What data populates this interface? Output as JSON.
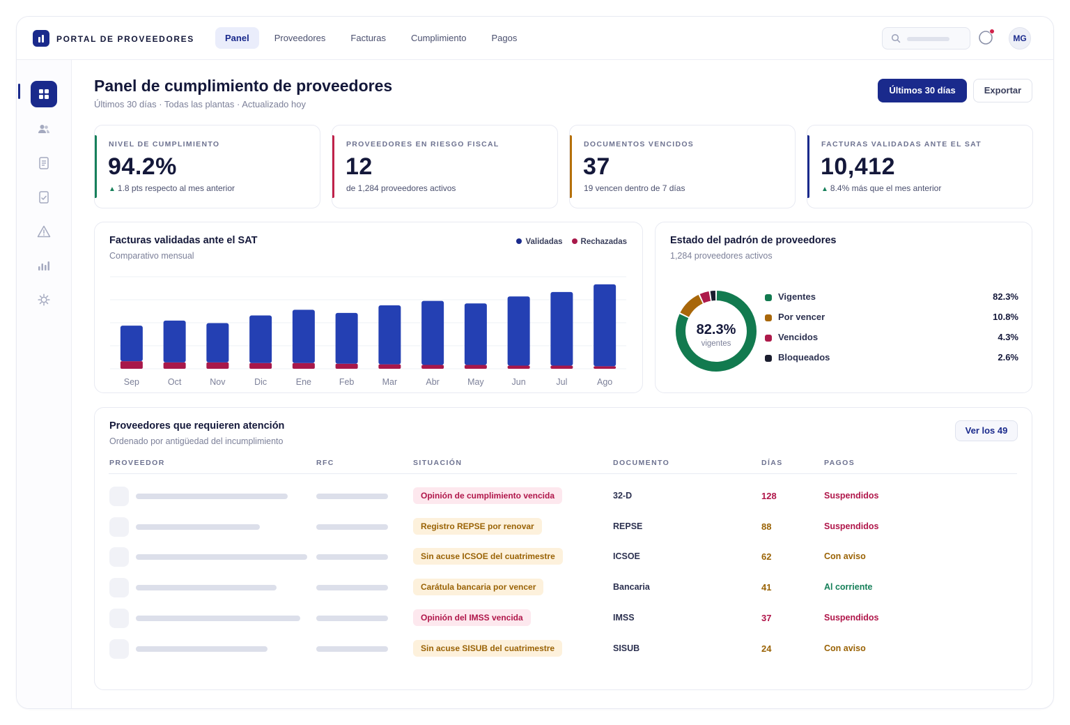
{
  "app": {
    "brand": "PORTAL DE PROVEEDORES",
    "user_initials": "MG"
  },
  "nav": [
    {
      "label": "Panel",
      "active": true
    },
    {
      "label": "Proveedores",
      "active": false
    },
    {
      "label": "Facturas",
      "active": false
    },
    {
      "label": "Cumplimiento",
      "active": false
    },
    {
      "label": "Pagos",
      "active": false
    }
  ],
  "sidebar": {
    "items": [
      {
        "icon": "grid-icon",
        "active": true
      },
      {
        "icon": "users-icon",
        "active": false
      },
      {
        "icon": "document-icon",
        "active": false
      },
      {
        "icon": "document-check-icon",
        "active": false
      },
      {
        "icon": "warning-icon",
        "active": false
      },
      {
        "icon": "bar-chart-icon",
        "active": false
      },
      {
        "icon": "settings-icon",
        "active": false
      }
    ]
  },
  "header": {
    "title": "Panel de cumplimiento de proveedores",
    "subtitle": "Últimos 30 días · Todas las plantas · Actualizado hoy",
    "primary_button": "Últimos 30 días",
    "secondary_button": "Exportar"
  },
  "kpis": [
    {
      "label": "NIVEL DE CUMPLIMIENTO",
      "value": "94.2%",
      "note": "1.8 pts respecto al mes anterior",
      "trend": "up",
      "color": "#17805a"
    },
    {
      "label": "PROVEEDORES EN RIESGO FISCAL",
      "value": "12",
      "note": "de 1,284 proveedores activos",
      "trend": "",
      "color": "#c0224a"
    },
    {
      "label": "DOCUMENTOS VENCIDOS",
      "value": "37",
      "note": "19 vencen dentro de 7 días",
      "trend": "",
      "color": "#b5700a"
    },
    {
      "label": "FACTURAS VALIDADAS ANTE EL SAT",
      "value": "10,412",
      "note": "8.4% más que el mes anterior",
      "trend": "up",
      "color": "#1a2a8c"
    }
  ],
  "invoices_card": {
    "title": "Facturas validadas ante el SAT",
    "subtitle": "Comparativo mensual"
  },
  "chart_data": {
    "type": "bar",
    "stacked": true,
    "categories": [
      "Sep",
      "Oct",
      "Nov",
      "Dic",
      "Ene",
      "Feb",
      "Mar",
      "Abr",
      "May",
      "Jun",
      "Jul",
      "Ago"
    ],
    "series": [
      {
        "name": "Validadas",
        "color": "#2440b3",
        "values": [
          56,
          66,
          62,
          75,
          84,
          80,
          93,
          101,
          97,
          109,
          116,
          129
        ]
      },
      {
        "name": "Rechazadas",
        "color": "#a8184a",
        "values": [
          12,
          10,
          10,
          9,
          9,
          8,
          7,
          6,
          6,
          5,
          5,
          4
        ]
      }
    ],
    "ylim": [
      0,
      145
    ],
    "grid": true,
    "legend": "top-right"
  },
  "status_card": {
    "title": "Estado del padrón de proveedores",
    "subtitle": "1,284 proveedores activos",
    "center_value": "82.3%",
    "center_label": "vigentes",
    "segments": [
      {
        "label": "Vigentes",
        "pct_text": "82.3%",
        "value": 82.3,
        "color": "#127a4f"
      },
      {
        "label": "Por vencer",
        "pct_text": "10.8%",
        "value": 10.8,
        "color": "#a8670a"
      },
      {
        "label": "Vencidos",
        "pct_text": "4.3%",
        "value": 4.3,
        "color": "#ad1a4a"
      },
      {
        "label": "Bloqueados",
        "pct_text": "2.6%",
        "value": 2.6,
        "color": "#1a1d2e"
      }
    ]
  },
  "attention": {
    "title": "Proveedores que requieren atención",
    "subtitle": "Ordenado por antigüedad del incumplimiento",
    "view_all": "Ver los 49",
    "columns": [
      "PROVEEDOR",
      "RFC",
      "SITUACIÓN",
      "DOCUMENTO",
      "DÍAS",
      "PAGOS"
    ],
    "rows": [
      {
        "situacion": "Opinión de cumplimiento vencida",
        "sev": "danger",
        "documento": "32-D",
        "dias": "128",
        "days_sev": "danger",
        "pagos": "Suspendidos",
        "pay_sev": "danger"
      },
      {
        "situacion": "Registro REPSE por renovar",
        "sev": "warn",
        "documento": "REPSE",
        "dias": "88",
        "days_sev": "warn",
        "pagos": "Suspendidos",
        "pay_sev": "danger"
      },
      {
        "situacion": "Sin acuse ICSOE del cuatrimestre",
        "sev": "warn",
        "documento": "ICSOE",
        "dias": "62",
        "days_sev": "warn",
        "pagos": "Con aviso",
        "pay_sev": "warn"
      },
      {
        "situacion": "Carátula bancaria por vencer",
        "sev": "warn",
        "documento": "Bancaria",
        "dias": "41",
        "days_sev": "warn",
        "pagos": "Al corriente",
        "pay_sev": "ok"
      },
      {
        "situacion": "Opinión del IMSS vencida",
        "sev": "danger",
        "documento": "IMSS",
        "dias": "37",
        "days_sev": "danger",
        "pagos": "Suspendidos",
        "pay_sev": "danger"
      },
      {
        "situacion": "Sin acuse SISUB del cuatrimestre",
        "sev": "warn",
        "documento": "SISUB",
        "dias": "24",
        "days_sev": "warn",
        "pagos": "Con aviso",
        "pay_sev": "warn"
      }
    ]
  },
  "colors": {
    "accent": "#1a2a8c",
    "danger_text": "#b0164a",
    "danger_bg": "#fde8ee",
    "warn_text": "#9a6306",
    "warn_bg": "#fdf1dc",
    "ok_text": "#17805a"
  }
}
